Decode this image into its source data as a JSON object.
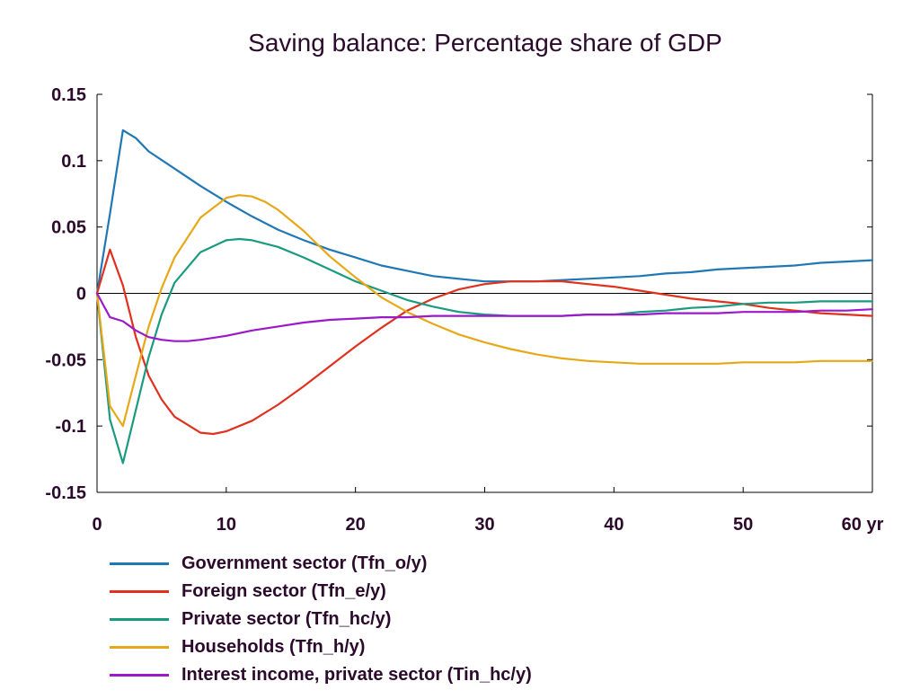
{
  "chart_data": {
    "type": "line",
    "title": "Saving balance: Percentage share of GDP",
    "xlabel": "",
    "ylabel": "",
    "x_unit_label": "yr",
    "xlim": [
      0,
      60
    ],
    "ylim": [
      -0.15,
      0.15
    ],
    "xticks": [
      0,
      10,
      20,
      30,
      40,
      50,
      60
    ],
    "yticks": [
      -0.15,
      -0.1,
      -0.05,
      0,
      0.05,
      0.1,
      0.15
    ],
    "xtick_labels": [
      "0",
      "10",
      "20",
      "30",
      "40",
      "50",
      "60 yr"
    ],
    "ytick_labels": [
      "-0.15",
      "-0.1",
      "-0.05",
      "0",
      "0.05",
      "0.1",
      "0.15"
    ],
    "zero_line": true,
    "grid": false,
    "legend_position": "bottom",
    "series": [
      {
        "name": "Government sector (Tfn_o/y)",
        "color": "#1f77b4",
        "x": [
          0,
          1,
          2,
          3,
          4,
          6,
          8,
          10,
          12,
          14,
          16,
          18,
          20,
          22,
          24,
          26,
          28,
          30,
          32,
          34,
          36,
          38,
          40,
          42,
          44,
          46,
          48,
          50,
          52,
          54,
          56,
          58,
          60
        ],
        "y": [
          0,
          0.06,
          0.123,
          0.117,
          0.107,
          0.094,
          0.081,
          0.069,
          0.058,
          0.048,
          0.04,
          0.033,
          0.027,
          0.021,
          0.017,
          0.013,
          0.011,
          0.009,
          0.009,
          0.009,
          0.01,
          0.011,
          0.012,
          0.013,
          0.015,
          0.016,
          0.018,
          0.019,
          0.02,
          0.021,
          0.023,
          0.024,
          0.025
        ]
      },
      {
        "name": "Foreign sector (Tfn_e/y)",
        "color": "#e0301e",
        "x": [
          0,
          1,
          2,
          3,
          4,
          5,
          6,
          8,
          9,
          10,
          12,
          14,
          16,
          18,
          20,
          22,
          24,
          26,
          28,
          30,
          32,
          34,
          36,
          38,
          40,
          42,
          44,
          46,
          48,
          50,
          52,
          54,
          56,
          58,
          60
        ],
        "y": [
          0,
          0.033,
          0.006,
          -0.033,
          -0.062,
          -0.08,
          -0.093,
          -0.105,
          -0.106,
          -0.104,
          -0.096,
          -0.084,
          -0.07,
          -0.055,
          -0.04,
          -0.026,
          -0.013,
          -0.004,
          0.003,
          0.007,
          0.009,
          0.009,
          0.009,
          0.007,
          0.005,
          0.002,
          -0.001,
          -0.004,
          -0.006,
          -0.008,
          -0.011,
          -0.013,
          -0.015,
          -0.016,
          -0.017
        ]
      },
      {
        "name": "Private sector (Tfn_hc/y)",
        "color": "#1a9a80",
        "x": [
          0,
          1,
          2,
          3,
          4,
          5,
          6,
          8,
          10,
          11,
          12,
          14,
          16,
          18,
          20,
          22,
          24,
          26,
          28,
          30,
          32,
          34,
          36,
          38,
          40,
          42,
          44,
          46,
          48,
          50,
          52,
          54,
          56,
          58,
          60
        ],
        "y": [
          0,
          -0.095,
          -0.128,
          -0.088,
          -0.048,
          -0.016,
          0.008,
          0.031,
          0.04,
          0.041,
          0.04,
          0.035,
          0.027,
          0.018,
          0.009,
          0.002,
          -0.005,
          -0.01,
          -0.014,
          -0.016,
          -0.017,
          -0.017,
          -0.017,
          -0.016,
          -0.016,
          -0.014,
          -0.013,
          -0.011,
          -0.01,
          -0.008,
          -0.007,
          -0.007,
          -0.006,
          -0.006,
          -0.006
        ]
      },
      {
        "name": "Households (Tfn_h/y)",
        "color": "#e6a817",
        "x": [
          0,
          1,
          2,
          3,
          4,
          5,
          6,
          8,
          10,
          11,
          12,
          13,
          14,
          16,
          18,
          20,
          22,
          24,
          26,
          28,
          30,
          32,
          34,
          36,
          38,
          40,
          42,
          44,
          46,
          48,
          50,
          52,
          54,
          56,
          58,
          60
        ],
        "y": [
          0,
          -0.085,
          -0.1,
          -0.062,
          -0.025,
          0.004,
          0.027,
          0.057,
          0.072,
          0.074,
          0.073,
          0.069,
          0.063,
          0.047,
          0.028,
          0.012,
          -0.003,
          -0.014,
          -0.023,
          -0.031,
          -0.037,
          -0.042,
          -0.046,
          -0.049,
          -0.051,
          -0.052,
          -0.053,
          -0.053,
          -0.053,
          -0.053,
          -0.052,
          -0.052,
          -0.052,
          -0.051,
          -0.051,
          -0.051
        ]
      },
      {
        "name": "Interest income, private sector (Tin_hc/y)",
        "color": "#9b19c8",
        "x": [
          0,
          1,
          2,
          3,
          4,
          5,
          6,
          7,
          8,
          10,
          12,
          14,
          16,
          18,
          20,
          22,
          24,
          26,
          28,
          30,
          32,
          34,
          36,
          38,
          40,
          42,
          44,
          46,
          48,
          50,
          52,
          54,
          56,
          58,
          60
        ],
        "y": [
          0,
          -0.018,
          -0.021,
          -0.028,
          -0.033,
          -0.035,
          -0.036,
          -0.036,
          -0.035,
          -0.032,
          -0.028,
          -0.025,
          -0.022,
          -0.02,
          -0.019,
          -0.018,
          -0.018,
          -0.017,
          -0.017,
          -0.017,
          -0.017,
          -0.017,
          -0.017,
          -0.016,
          -0.016,
          -0.016,
          -0.015,
          -0.015,
          -0.015,
          -0.014,
          -0.014,
          -0.014,
          -0.013,
          -0.013,
          -0.012
        ]
      }
    ]
  }
}
